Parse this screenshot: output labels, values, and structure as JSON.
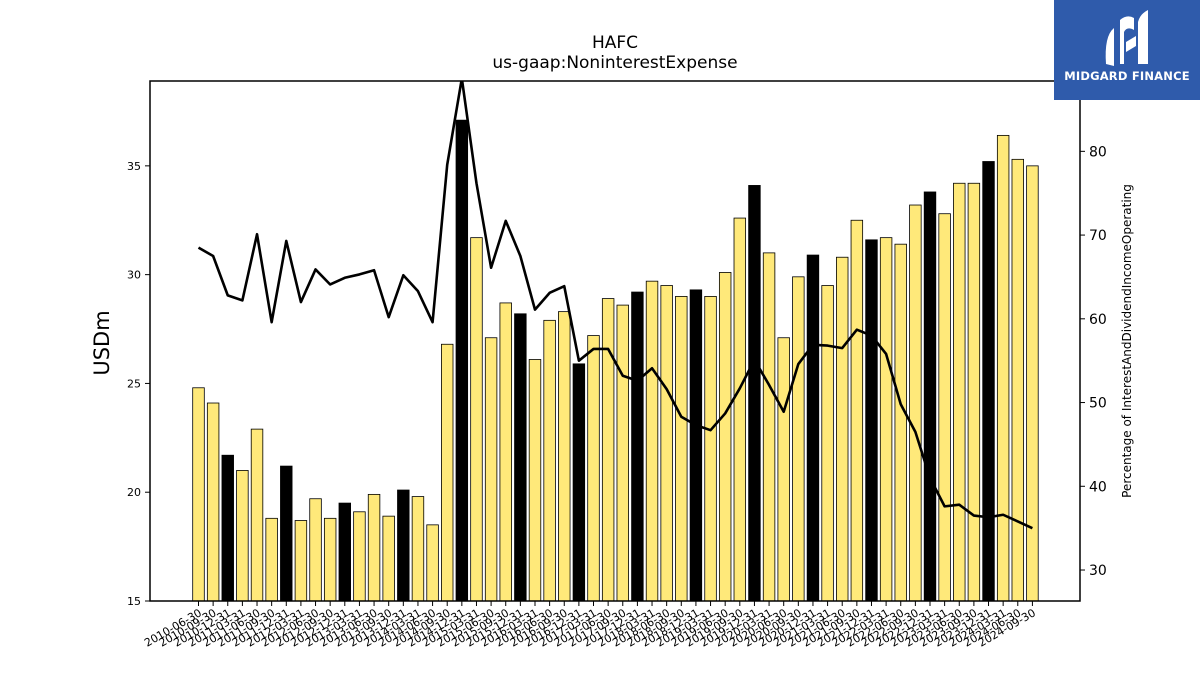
{
  "logo": {
    "name": "MIDGARD FINANCE"
  },
  "chart_data": {
    "type": "bar",
    "title": "HAFC",
    "subtitle": "us-gaap:NoninterestExpense",
    "ylabel": "USDm",
    "y2label": "Percentage of InterestAndDividendIncomeOperating",
    "ylim": [
      15,
      38.9
    ],
    "y2lim": [
      26.3,
      88.4
    ],
    "yticks": [
      15,
      20,
      25,
      30,
      35
    ],
    "y2ticks": [
      30,
      40,
      50,
      60,
      70,
      80
    ],
    "colors": {
      "bar": "#ffe97a",
      "bar_q4": "#000000",
      "line": "#000000"
    },
    "categories": [
      "2010-06-30",
      "2010-09-30",
      "2010-12-31",
      "2011-03-31",
      "2011-06-30",
      "2011-09-30",
      "2011-12-31",
      "2012-03-31",
      "2012-06-30",
      "2012-09-30",
      "2012-12-31",
      "2013-03-31",
      "2013-06-30",
      "2013-09-30",
      "2013-12-31",
      "2014-03-31",
      "2014-06-30",
      "2014-09-30",
      "2014-12-31",
      "2015-03-31",
      "2015-06-30",
      "2015-09-30",
      "2015-12-31",
      "2016-03-31",
      "2016-06-30",
      "2016-09-30",
      "2016-12-31",
      "2017-03-31",
      "2017-06-30",
      "2017-09-30",
      "2017-12-31",
      "2018-03-31",
      "2018-06-30",
      "2018-09-30",
      "2018-12-31",
      "2019-03-31",
      "2019-06-30",
      "2019-09-30",
      "2019-12-31",
      "2020-03-31",
      "2020-06-30",
      "2020-09-30",
      "2020-12-31",
      "2021-03-31",
      "2021-06-30",
      "2021-09-30",
      "2021-12-31",
      "2022-03-31",
      "2022-06-30",
      "2022-09-30",
      "2022-12-31",
      "2023-03-31",
      "2023-06-30",
      "2023-09-30",
      "2023-12-31",
      "2024-03-31",
      "2024-06-30",
      "2024-09-30"
    ],
    "series": [
      {
        "type": "bar",
        "values": [
          24.8,
          24.1,
          21.7,
          21.0,
          22.9,
          18.8,
          21.2,
          18.7,
          19.7,
          18.8,
          19.5,
          19.1,
          19.9,
          18.9,
          20.1,
          19.8,
          18.5,
          26.8,
          37.1,
          31.7,
          27.1,
          28.7,
          28.2,
          26.1,
          27.9,
          28.3,
          25.9,
          27.2,
          28.9,
          28.6,
          29.2,
          29.7,
          29.5,
          29.0,
          29.3,
          29.0,
          30.1,
          32.6,
          34.1,
          31.0,
          27.1,
          29.9,
          30.9,
          29.5,
          30.8,
          32.5,
          31.6,
          31.7,
          31.4,
          33.2,
          33.8,
          32.8,
          34.2,
          34.2,
          35.2,
          36.4,
          35.3,
          35.0
        ]
      },
      {
        "type": "line",
        "axis": "right",
        "values": [
          68.5,
          67.5,
          62.8,
          62.2,
          70.1,
          59.6,
          69.3,
          62.0,
          65.9,
          64.1,
          64.9,
          65.3,
          65.8,
          60.2,
          65.2,
          63.3,
          59.6,
          78.4,
          88.7,
          76.2,
          66.1,
          71.7,
          67.5,
          61.1,
          63.1,
          63.9,
          55.0,
          56.4,
          56.4,
          53.2,
          52.6,
          54.1,
          51.6,
          48.3,
          47.3,
          46.7,
          48.7,
          51.7,
          55.1,
          52.1,
          48.9,
          54.6,
          56.9,
          56.8,
          56.5,
          58.7,
          58.0,
          55.8,
          49.8,
          46.5,
          41.0,
          37.6,
          37.8,
          36.5,
          36.3,
          36.6,
          35.8,
          35.0
        ]
      }
    ]
  }
}
